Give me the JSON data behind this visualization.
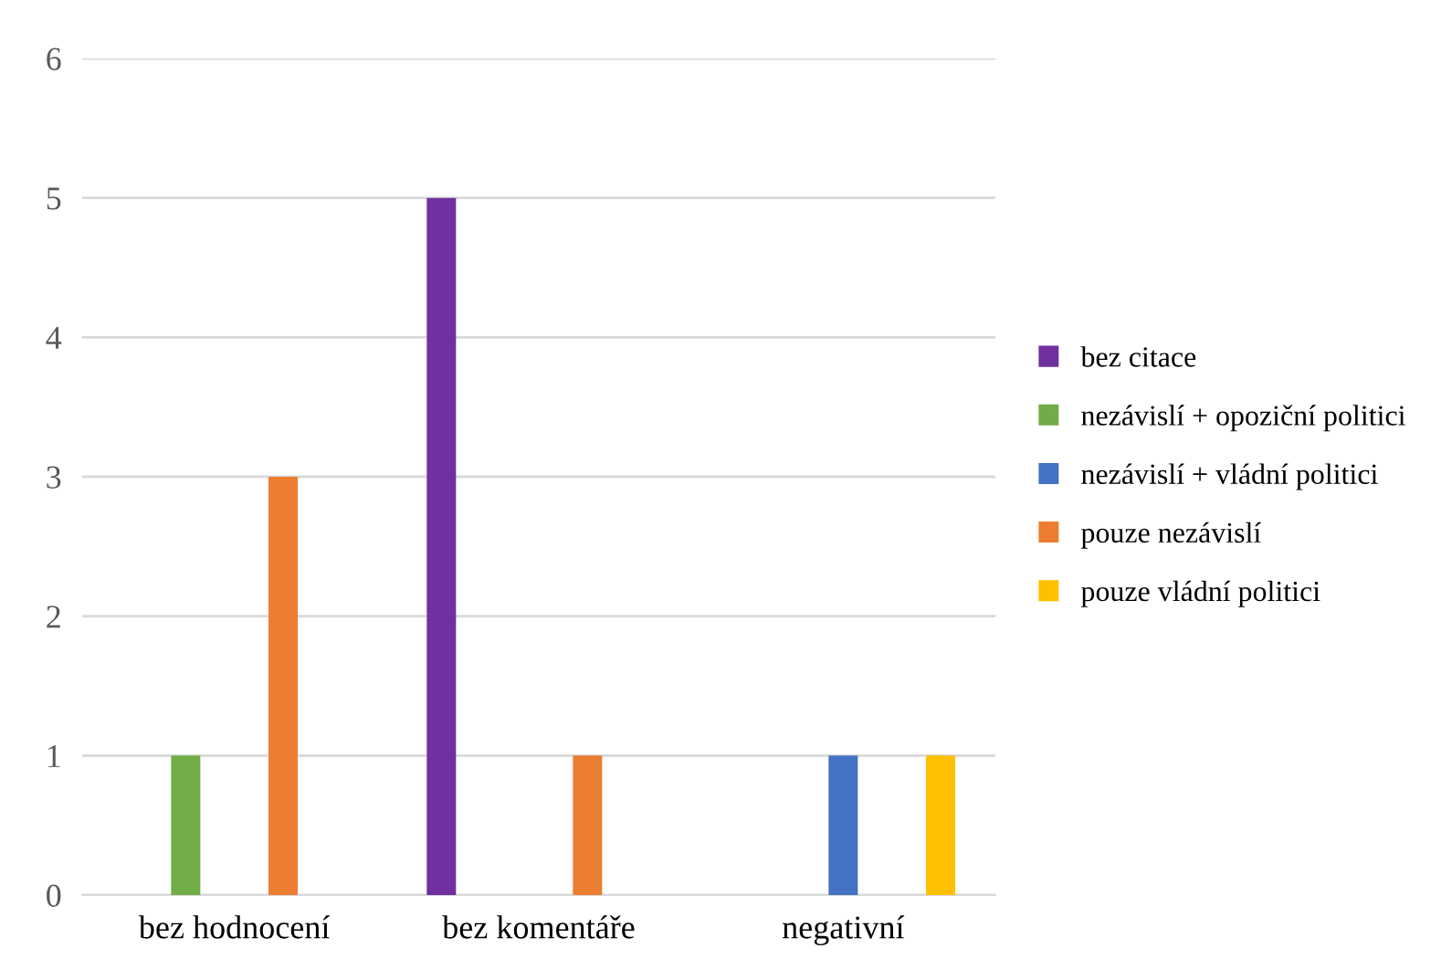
{
  "chart_data": {
    "type": "bar",
    "categories": [
      "bez hodnocení",
      "bez komentáře",
      "negativní"
    ],
    "series": [
      {
        "name": "bez citace",
        "color": "#7030a0",
        "values": [
          0,
          5,
          0
        ]
      },
      {
        "name": "nezávislí + opoziční politici",
        "color": "#70ad47",
        "values": [
          1,
          0,
          0
        ]
      },
      {
        "name": "nezávislí + vládní politici",
        "color": "#4472c4",
        "values": [
          0,
          0,
          1
        ]
      },
      {
        "name": "pouze nezávislí",
        "color": "#ed7d31",
        "values": [
          3,
          1,
          0
        ]
      },
      {
        "name": "pouze vládní politici",
        "color": "#ffc000",
        "values": [
          0,
          0,
          1
        ]
      }
    ],
    "ylim": [
      0,
      6
    ],
    "yticks": [
      0,
      1,
      2,
      3,
      4,
      5,
      6
    ],
    "grid": "y",
    "legend": "right"
  }
}
